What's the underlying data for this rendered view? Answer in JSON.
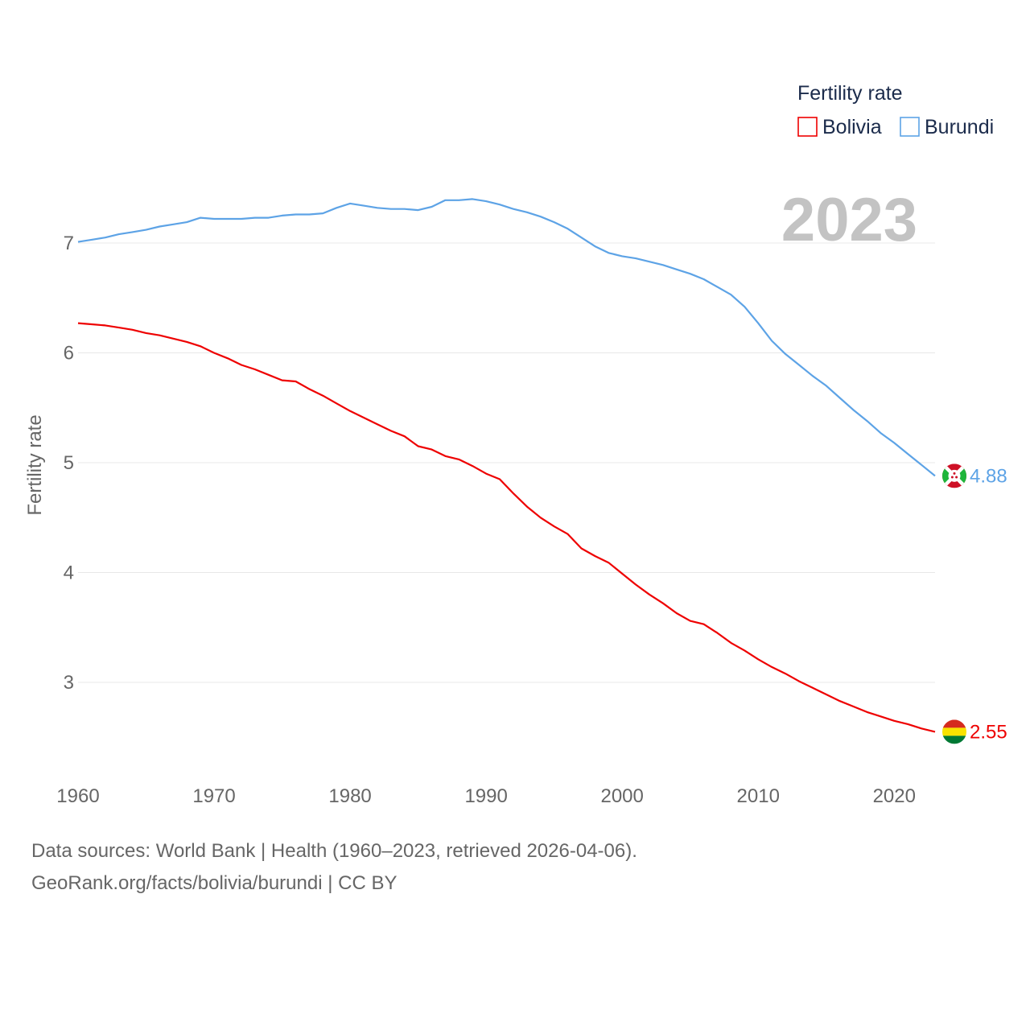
{
  "chart_data": {
    "type": "line",
    "title": "",
    "year_label": "2023",
    "xlabel": "",
    "ylabel": "Fertility rate",
    "xlim": [
      1960,
      2023
    ],
    "ylim": [
      2.4,
      7.6
    ],
    "x_ticks": [
      1960,
      1970,
      1980,
      1990,
      2000,
      2010,
      2020
    ],
    "y_ticks": [
      3,
      4,
      5,
      6,
      7
    ],
    "grid": "horizontal",
    "legend": {
      "title": "Fertility rate",
      "placement": "top-right",
      "entries": [
        "Bolivia",
        "Burundi"
      ]
    },
    "x": [
      1960,
      1961,
      1962,
      1963,
      1964,
      1965,
      1966,
      1967,
      1968,
      1969,
      1970,
      1971,
      1972,
      1973,
      1974,
      1975,
      1976,
      1977,
      1978,
      1979,
      1980,
      1981,
      1982,
      1983,
      1984,
      1985,
      1986,
      1987,
      1988,
      1989,
      1990,
      1991,
      1992,
      1993,
      1994,
      1995,
      1996,
      1997,
      1998,
      1999,
      2000,
      2001,
      2002,
      2003,
      2004,
      2005,
      2006,
      2007,
      2008,
      2009,
      2010,
      2011,
      2012,
      2013,
      2014,
      2015,
      2016,
      2017,
      2018,
      2019,
      2020,
      2021,
      2022,
      2023
    ],
    "series": [
      {
        "name": "Bolivia",
        "color": "#ee0000",
        "end_label": "2.55",
        "values": [
          6.27,
          6.26,
          6.25,
          6.23,
          6.21,
          6.18,
          6.16,
          6.13,
          6.1,
          6.06,
          6.0,
          5.95,
          5.89,
          5.85,
          5.8,
          5.75,
          5.74,
          5.67,
          5.61,
          5.54,
          5.47,
          5.41,
          5.35,
          5.29,
          5.24,
          5.15,
          5.12,
          5.06,
          5.03,
          4.97,
          4.9,
          4.85,
          4.72,
          4.6,
          4.5,
          4.42,
          4.35,
          4.22,
          4.15,
          4.09,
          3.99,
          3.89,
          3.8,
          3.72,
          3.63,
          3.56,
          3.53,
          3.45,
          3.36,
          3.29,
          3.21,
          3.14,
          3.08,
          3.01,
          2.95,
          2.89,
          2.83,
          2.78,
          2.73,
          2.69,
          2.65,
          2.62,
          2.58,
          2.55
        ]
      },
      {
        "name": "Burundi",
        "color": "#5da3e6",
        "end_label": "4.88",
        "values": [
          7.01,
          7.03,
          7.05,
          7.08,
          7.1,
          7.12,
          7.15,
          7.17,
          7.19,
          7.23,
          7.22,
          7.22,
          7.22,
          7.23,
          7.23,
          7.25,
          7.26,
          7.26,
          7.27,
          7.32,
          7.36,
          7.34,
          7.32,
          7.31,
          7.31,
          7.3,
          7.33,
          7.39,
          7.39,
          7.4,
          7.38,
          7.35,
          7.31,
          7.28,
          7.24,
          7.19,
          7.13,
          7.05,
          6.97,
          6.91,
          6.88,
          6.86,
          6.83,
          6.8,
          6.76,
          6.72,
          6.67,
          6.6,
          6.53,
          6.42,
          6.27,
          6.11,
          5.99,
          5.89,
          5.79,
          5.7,
          5.59,
          5.48,
          5.38,
          5.27,
          5.18,
          5.08,
          4.98,
          4.88
        ]
      }
    ]
  },
  "footer": {
    "line1": "Data sources: World Bank | Health (1960–2023, retrieved 2026-04-06).",
    "line2": "GeoRank.org/facts/bolivia/burundi | CC BY"
  }
}
